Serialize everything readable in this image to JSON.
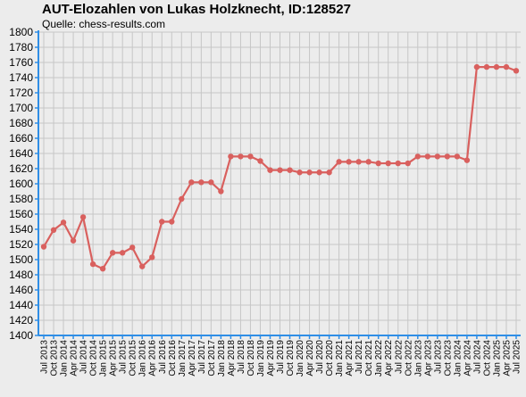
{
  "header": {
    "title": "AUT-Elozahlen von Lukas Holzknecht, ID:128527",
    "subtitle": "Quelle: chess-results.com"
  },
  "colors": {
    "background": "#ececec",
    "grid": "#c6c6c6",
    "axis": "#2f8ee6",
    "series": "#d9605e"
  },
  "chart_data": {
    "type": "line",
    "title": "AUT-Elozahlen von Lukas Holzknecht, ID:128527",
    "subtitle": "Quelle: chess-results.com",
    "xlabel": "",
    "ylabel": "",
    "ylim": [
      1400,
      1800
    ],
    "ytick_step": 20,
    "grid": true,
    "categories": [
      "Jul 2013",
      "Oct 2013",
      "Jan 2014",
      "Apr 2014",
      "Jul 2014",
      "Oct 2014",
      "Jan 2015",
      "Apr 2015",
      "Jul 2015",
      "Oct 2015",
      "Jan 2016",
      "Apr 2016",
      "Jul 2016",
      "Oct 2016",
      "Jan 2017",
      "Apr 2017",
      "Jul 2017",
      "Oct 2017",
      "Jan 2018",
      "Apr 2018",
      "Jul 2018",
      "Oct 2018",
      "Jan 2019",
      "Apr 2019",
      "Jul 2019",
      "Oct 2019",
      "Jan 2020",
      "Apr 2020",
      "Jul 2020",
      "Oct 2020",
      "Jan 2021",
      "Apr 2021",
      "Jul 2021",
      "Oct 2021",
      "Jan 2022",
      "Apr 2022",
      "Jul 2022",
      "Oct 2022",
      "Jan 2023",
      "Apr 2023",
      "Jul 2023",
      "Oct 2023",
      "Jan 2024",
      "Apr 2024",
      "Jul 2024",
      "Oct 2024",
      "Jan 2025",
      "Apr 2025",
      "Jul 2025"
    ],
    "series": [
      {
        "values": [
          1517,
          1539,
          1549,
          1525,
          1556,
          1494,
          1488,
          1509,
          1509,
          1516,
          1491,
          1503,
          1550,
          1550,
          1580,
          1602,
          1602,
          1602,
          1590,
          1636,
          1636,
          1636,
          1630,
          1618,
          1618,
          1618,
          1615,
          1615,
          1615,
          1615,
          1629,
          1629,
          1629,
          1629,
          1627,
          1627,
          1627,
          1627,
          1636,
          1636,
          1636,
          1636,
          1636,
          1631,
          1754,
          1754,
          1754,
          1754,
          1749
        ]
      }
    ]
  }
}
